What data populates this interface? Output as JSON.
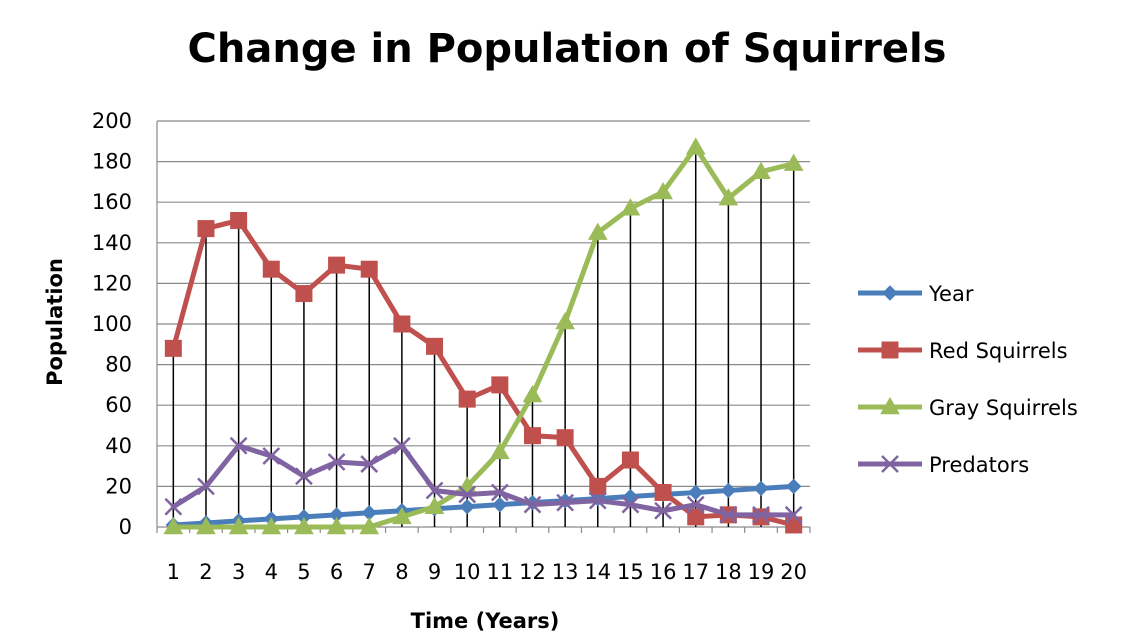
{
  "chart_data": {
    "type": "line",
    "title": "Change in Population of Squirrels",
    "xlabel": "Time (Years)",
    "ylabel": "Population",
    "ylim": [
      0,
      200
    ],
    "yticks": [
      "0",
      "20",
      "40",
      "60",
      "80",
      "100",
      "120",
      "140",
      "160",
      "180",
      "200"
    ],
    "categories": [
      "1",
      "2",
      "3",
      "4",
      "5",
      "6",
      "7",
      "8",
      "9",
      "10",
      "11",
      "12",
      "13",
      "14",
      "15",
      "16",
      "17",
      "18",
      "19",
      "20"
    ],
    "grid": "horizontal",
    "drop_lines": true,
    "legend_position": "right",
    "series": [
      {
        "name": "Year",
        "color": "#4a7ebb",
        "marker": "diamond",
        "values": [
          1,
          2,
          3,
          4,
          5,
          6,
          7,
          8,
          9,
          10,
          11,
          12,
          13,
          14,
          15,
          16,
          17,
          18,
          19,
          20
        ]
      },
      {
        "name": "Red Squirrels",
        "color": "#c0504d",
        "marker": "square",
        "values": [
          88,
          147,
          151,
          127,
          115,
          129,
          127,
          100,
          89,
          63,
          70,
          45,
          44,
          20,
          33,
          17,
          5,
          6,
          5,
          1
        ]
      },
      {
        "name": "Gray Squirrels",
        "color": "#9bbb59",
        "marker": "triangle",
        "values": [
          0,
          0,
          0,
          0,
          0,
          0,
          0,
          5,
          10,
          20,
          37,
          65,
          101,
          145,
          157,
          165,
          187,
          162,
          175,
          179
        ]
      },
      {
        "name": "Predators",
        "color": "#8064a2",
        "marker": "x",
        "values": [
          10,
          20,
          40,
          35,
          25,
          32,
          31,
          40,
          18,
          16,
          17,
          11,
          12,
          13,
          11,
          8,
          11,
          6,
          6,
          6
        ]
      }
    ]
  }
}
